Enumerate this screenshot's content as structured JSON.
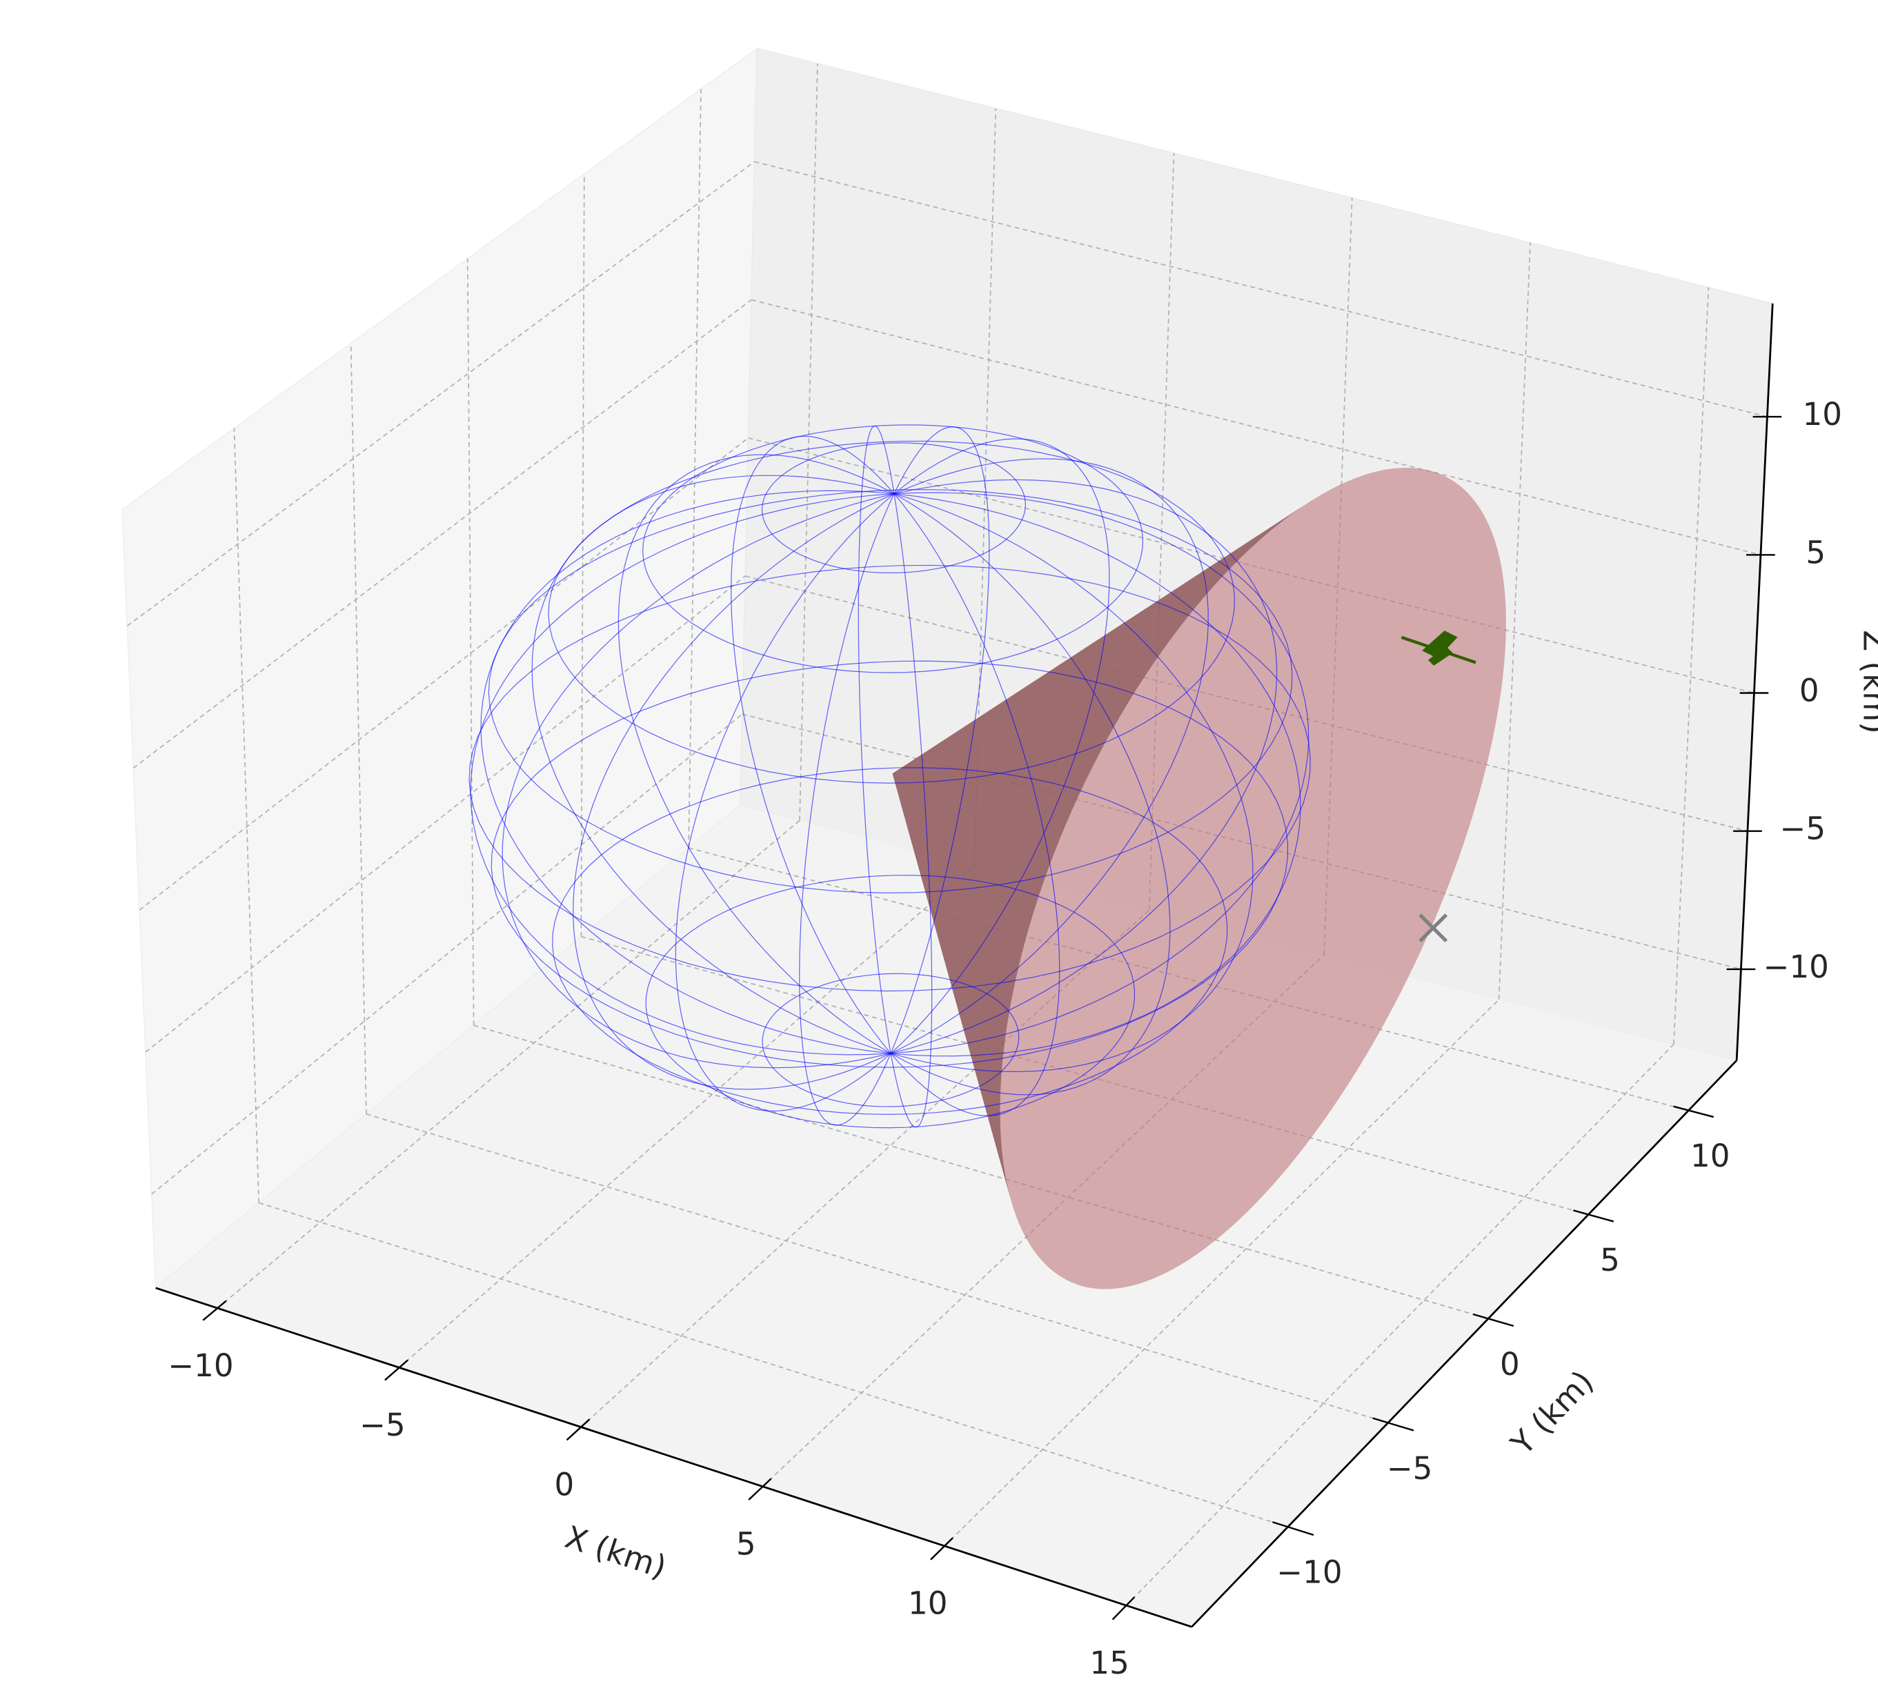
{
  "chart_data": {
    "type": "3d",
    "xlabel": "X (km)",
    "ylabel": "Y (km)",
    "zlabel": "Z (km)",
    "xlim": [
      -11.7,
      16.8
    ],
    "ylim": [
      -14.8,
      12.4
    ],
    "zlim": [
      -13.3,
      14.1
    ],
    "xticks": [
      {
        "value": -10,
        "label": "−10"
      },
      {
        "value": -5,
        "label": "−5"
      },
      0,
      5,
      10,
      15
    ],
    "yticks": [
      {
        "value": -10,
        "label": "−10"
      },
      {
        "value": -5,
        "label": "−5"
      },
      0,
      5,
      10
    ],
    "zticks": [
      {
        "value": -10,
        "label": "−10"
      },
      {
        "value": -5,
        "label": "−5"
      },
      0,
      5,
      10
    ],
    "grid": true,
    "sphere": {
      "center": [
        0,
        0,
        0
      ],
      "radius": 10,
      "color": "#0000ff"
    },
    "cone": {
      "apex": [
        0,
        0,
        0
      ],
      "base_center": [
        10,
        0,
        0
      ],
      "radius": 12,
      "color": "#c07a7e"
    },
    "satellite": {
      "position": [
        15,
        0,
        10
      ],
      "color": "#2f6000"
    },
    "target": {
      "position": [
        15,
        0,
        0
      ],
      "color": "#808080"
    }
  }
}
